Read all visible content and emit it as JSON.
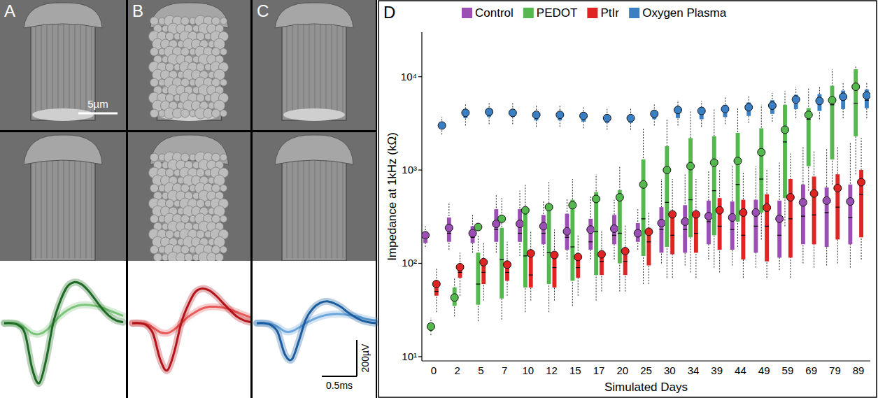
{
  "panels": [
    {
      "letter": "A",
      "waveforms": [
        {
          "color": "#7cc47a",
          "values": [
            0,
            0,
            -5,
            -25,
            -55,
            -60,
            -40,
            0,
            40,
            70,
            90,
            100,
            100,
            95,
            85,
            70,
            55,
            40
          ]
        },
        {
          "color": "#1d6b23",
          "values": [
            0,
            0,
            -10,
            -60,
            -250,
            -330,
            -200,
            0,
            120,
            200,
            225,
            215,
            180,
            130,
            80,
            40,
            15,
            5
          ]
        }
      ]
    },
    {
      "letter": "B",
      "waveforms": [
        {
          "color": "#e85a5a",
          "values": [
            0,
            0,
            -5,
            -25,
            -50,
            -55,
            -35,
            0,
            35,
            60,
            80,
            90,
            90,
            85,
            75,
            60,
            45,
            30
          ]
        },
        {
          "color": "#b3141a",
          "values": [
            0,
            0,
            -10,
            -60,
            -200,
            -260,
            -160,
            0,
            100,
            170,
            190,
            180,
            150,
            110,
            70,
            35,
            15,
            5
          ]
        }
      ]
    },
    {
      "letter": "C",
      "waveforms": [
        {
          "color": "#6aa6db",
          "values": [
            0,
            0,
            -5,
            -20,
            -45,
            -45,
            -25,
            0,
            20,
            35,
            45,
            50,
            50,
            45,
            40,
            30,
            20,
            15
          ]
        },
        {
          "color": "#1b5d9e",
          "values": [
            0,
            0,
            -10,
            -50,
            -170,
            -200,
            -100,
            20,
            80,
            110,
            120,
            110,
            90,
            60,
            35,
            15,
            5,
            0
          ]
        }
      ]
    }
  ],
  "time_ms": [
    0,
    0.1,
    0.2,
    0.3,
    0.4,
    0.5,
    0.6,
    0.7,
    0.8,
    0.9,
    1.0,
    1.1,
    1.2,
    1.3,
    1.4,
    1.5,
    1.6,
    1.7
  ],
  "scale_bar_image": "5µm",
  "scale_bar_voltage": {
    "value": 200,
    "label": "200µV"
  },
  "scale_bar_time": {
    "value": 0.5,
    "label": "0.5ms"
  },
  "chart_letter": "D",
  "chart_data": {
    "type": "box",
    "x_label": "Simulated Days",
    "y_label": "Impedance at 1kHz (kΩ)",
    "categories": [
      "0",
      "2",
      "5",
      "7",
      "10",
      "12",
      "15",
      "17",
      "20",
      "25",
      "30",
      "34",
      "39",
      "44",
      "49",
      "59",
      "69",
      "79",
      "89"
    ],
    "log": "y",
    "grid": false,
    "legend": "top",
    "ylim": [
      9,
      30000
    ],
    "yticks": [
      {
        "value": 10,
        "label": "10¹"
      },
      {
        "value": 100,
        "label": "10²"
      },
      {
        "value": 1000,
        "label": "10³"
      },
      {
        "value": 10000,
        "label": "10⁴"
      }
    ],
    "series": [
      {
        "name": "Control",
        "color": "#9b4fb4",
        "values": [
          200,
          240,
          210,
          265,
          265,
          250,
          220,
          230,
          235,
          210,
          270,
          280,
          320,
          310,
          350,
          300,
          450,
          470,
          460
        ],
        "q1": [
          165,
          170,
          165,
          170,
          170,
          160,
          140,
          140,
          160,
          170,
          130,
          130,
          160,
          140,
          130,
          115,
          160,
          150,
          160
        ],
        "median": [
          190,
          210,
          190,
          230,
          210,
          210,
          190,
          170,
          200,
          200,
          230,
          230,
          280,
          230,
          250,
          200,
          320,
          350,
          310
        ],
        "q3": [
          215,
          310,
          250,
          380,
          380,
          330,
          340,
          300,
          330,
          270,
          400,
          420,
          470,
          460,
          480,
          470,
          700,
          650,
          700
        ],
        "whisker_low": [
          150,
          140,
          130,
          130,
          120,
          120,
          110,
          110,
          110,
          140,
          100,
          95,
          110,
          95,
          90,
          85,
          100,
          95,
          90
        ],
        "whisker_high": [
          250,
          450,
          330,
          550,
          600,
          460,
          500,
          520,
          480,
          380,
          800,
          900,
          1000,
          1100,
          1100,
          1200,
          1800,
          1700,
          2000
        ]
      },
      {
        "name": "PEDOT",
        "color": "#55b84f",
        "values": [
          21,
          43,
          245,
          300,
          370,
          400,
          420,
          490,
          510,
          700,
          1000,
          1100,
          1200,
          1250,
          1550,
          2700,
          3900,
          5600,
          7800
        ],
        "q1": [
          19,
          35,
          36,
          42,
          55,
          60,
          65,
          75,
          100,
          120,
          150,
          190,
          200,
          280,
          350,
          500,
          1100,
          1300,
          2300
        ],
        "median": [
          21,
          42,
          60,
          110,
          120,
          130,
          150,
          220,
          210,
          300,
          450,
          480,
          600,
          700,
          800,
          2000,
          3500,
          5000,
          5200
        ],
        "q3": [
          23,
          55,
          130,
          240,
          400,
          420,
          480,
          580,
          610,
          1300,
          1800,
          2200,
          2300,
          2500,
          2800,
          5000,
          4600,
          8000,
          12000
        ],
        "whisker_low": [
          17,
          27,
          24,
          25,
          30,
          30,
          35,
          40,
          50,
          60,
          70,
          80,
          90,
          150,
          180,
          250,
          600,
          700,
          900
        ],
        "whisker_high": [
          26,
          70,
          200,
          500,
          700,
          750,
          800,
          900,
          1100,
          2800,
          3500,
          4300,
          4500,
          4700,
          5000,
          7000,
          7500,
          12000,
          13000
        ]
      },
      {
        "name": "PtIr",
        "color": "#e02424",
        "values": [
          60,
          91,
          103,
          97,
          128,
          123,
          117,
          125,
          135,
          218,
          335,
          335,
          370,
          350,
          395,
          510,
          560,
          640,
          740
        ],
        "q1": [
          45,
          70,
          60,
          65,
          55,
          55,
          70,
          75,
          75,
          95,
          125,
          130,
          140,
          110,
          105,
          115,
          160,
          180,
          190
        ],
        "median": [
          50,
          80,
          80,
          80,
          75,
          90,
          90,
          105,
          105,
          170,
          200,
          210,
          250,
          200,
          250,
          300,
          330,
          400,
          550
        ],
        "q3": [
          62,
          95,
          110,
          100,
          140,
          130,
          120,
          125,
          140,
          220,
          350,
          350,
          500,
          480,
          550,
          800,
          850,
          900,
          1000
        ],
        "whisker_low": [
          30,
          45,
          40,
          45,
          40,
          40,
          45,
          50,
          50,
          60,
          70,
          70,
          80,
          70,
          70,
          70,
          90,
          100,
          110
        ],
        "whisker_high": [
          90,
          130,
          170,
          170,
          220,
          230,
          200,
          220,
          260,
          350,
          800,
          800,
          1000,
          950,
          1000,
          1500,
          1600,
          1800,
          2200
        ]
      },
      {
        "name": "Oxygen Plasma",
        "color": "#3a7fc4",
        "values": [
          3000,
          4100,
          4200,
          4100,
          3900,
          3900,
          3800,
          3600,
          3600,
          4000,
          4400,
          4300,
          4500,
          4700,
          4900,
          5700,
          5500,
          6100,
          6300
        ],
        "q1": [
          2900,
          3600,
          3700,
          3700,
          3400,
          3400,
          3300,
          3200,
          3200,
          3500,
          3600,
          3500,
          3700,
          3800,
          4000,
          4500,
          4300,
          4500,
          4600
        ],
        "median": [
          3000,
          4000,
          4100,
          4000,
          3800,
          3800,
          3700,
          3500,
          3500,
          3900,
          4200,
          4100,
          4300,
          4400,
          4600,
          5400,
          5100,
          5800,
          5600
        ],
        "q3": [
          3200,
          4400,
          4500,
          4400,
          4200,
          4200,
          4100,
          3900,
          3900,
          4300,
          4700,
          4700,
          5000,
          5300,
          5600,
          6400,
          6500,
          7100,
          7300
        ],
        "whisker_low": [
          2400,
          3000,
          3100,
          3100,
          2900,
          2900,
          2800,
          2700,
          2700,
          3000,
          3000,
          2900,
          3100,
          3200,
          3300,
          3600,
          3500,
          3600,
          3600
        ],
        "whisker_high": [
          3700,
          5200,
          5300,
          5200,
          4900,
          5000,
          4800,
          4500,
          4600,
          5100,
          5600,
          5500,
          6000,
          6300,
          6700,
          7800,
          8000,
          8500,
          8800
        ]
      }
    ]
  }
}
